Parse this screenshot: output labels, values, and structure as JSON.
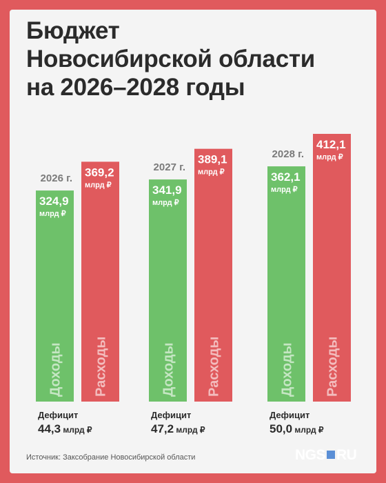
{
  "title_lines": [
    "Бюджет",
    "Новосибирской области",
    "на 2026–2028 годы"
  ],
  "source": "Источник: Заксобрание Новосибирской области",
  "logo": {
    "left": "NGS",
    "right": "RU"
  },
  "colors": {
    "background": "#e05a5d",
    "card": "#f4f4f4",
    "income": "#6ec16a",
    "expense": "#e05a5d",
    "title": "#2b2b2b",
    "year": "#7a7a7a"
  },
  "chart_data": {
    "type": "bar",
    "title": "Бюджет Новосибирской области на 2026–2028 годы",
    "categories": [
      "2026 г.",
      "2027 г.",
      "2028 г."
    ],
    "unit": "млрд ₽",
    "series": [
      {
        "name": "Доходы",
        "values": [
          324.9,
          341.9,
          362.1
        ],
        "labels": [
          "324,9",
          "341,9",
          "362,1"
        ]
      },
      {
        "name": "Расходы",
        "values": [
          369.2,
          389.1,
          412.1
        ],
        "labels": [
          "369,2",
          "389,1",
          "412,1"
        ]
      }
    ],
    "deficit_label": "Дефицит",
    "deficit_values": [
      "44,3 млрд ₽",
      "47,2 млрд ₽",
      "50,0 млрд ₽"
    ],
    "ylim": [
      0,
      412.1
    ]
  }
}
